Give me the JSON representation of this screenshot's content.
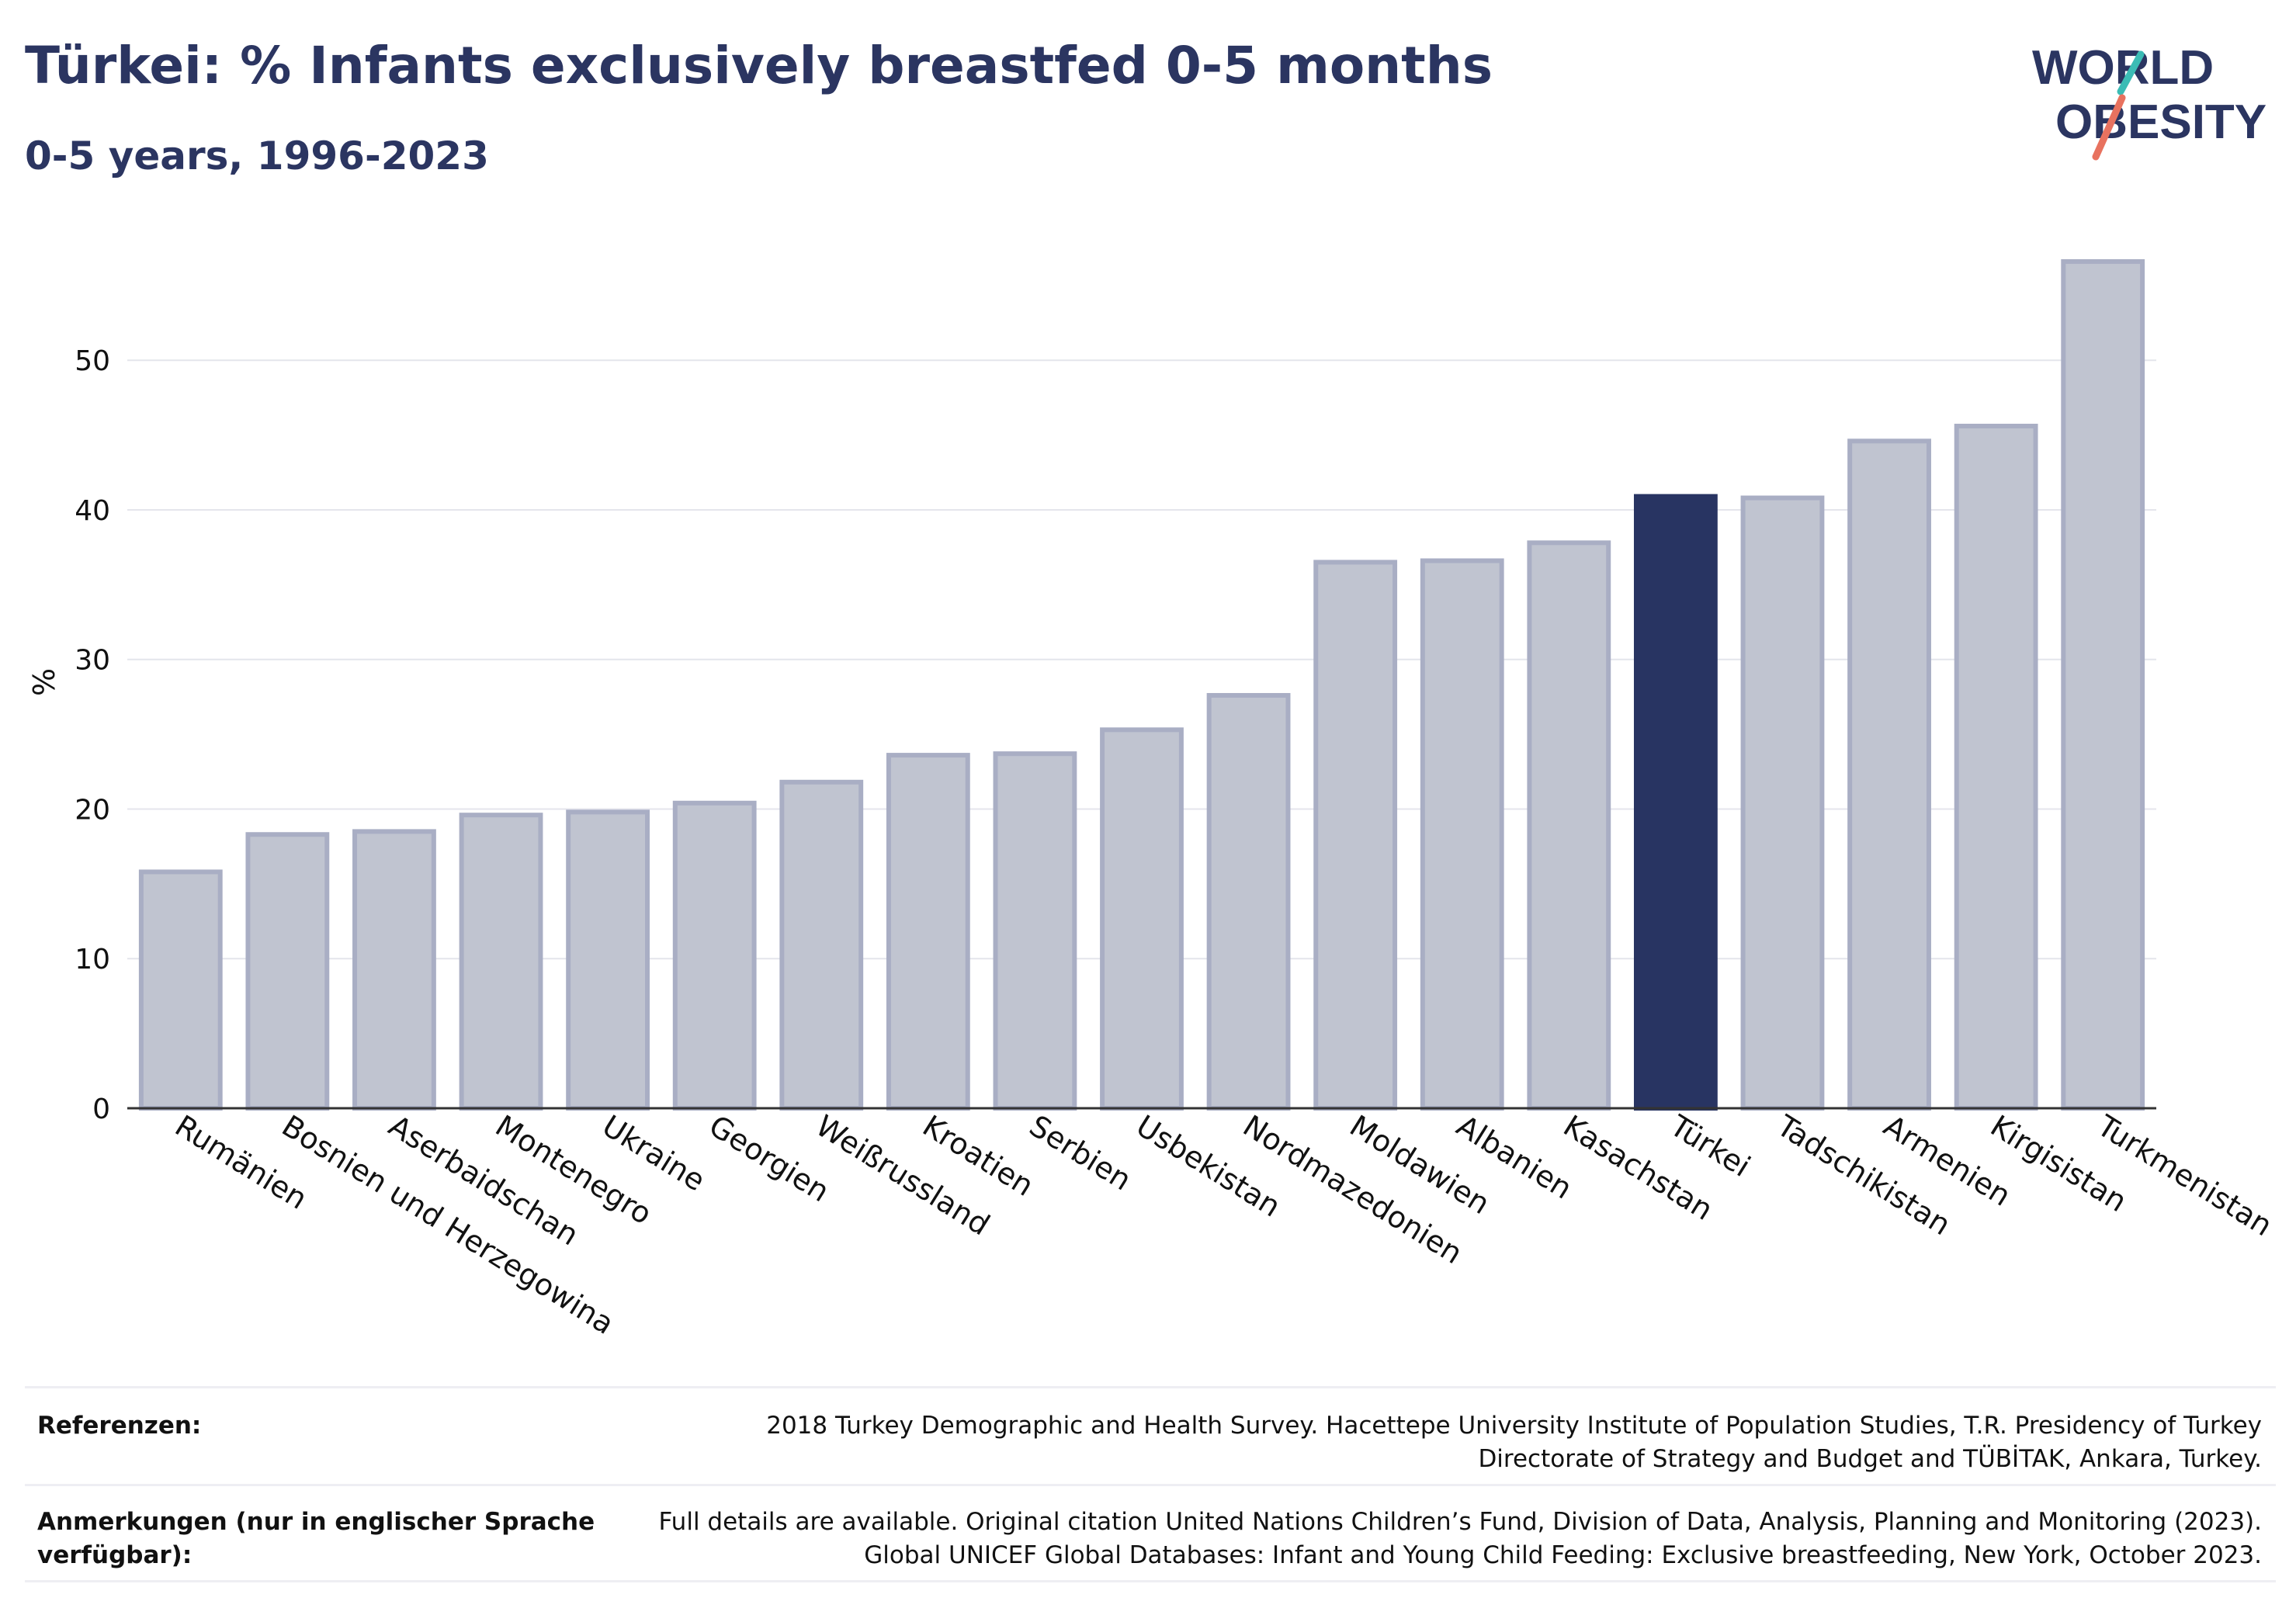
{
  "header": {
    "title": "Türkei: % Infants exclusively breastfed 0-5 months",
    "subtitle": "0-5 years, 1996-2023"
  },
  "logo": {
    "line1": "WORLD",
    "line2": "OBESITY"
  },
  "colors": {
    "text": "#2b3561",
    "highlight_bar": "#283462",
    "other_bar_fill": "#c0c4d0",
    "other_bar_stroke": "#a9aec4",
    "logo_teal": "#3bbcb5",
    "logo_coral": "#e8725f"
  },
  "chart_data": {
    "type": "bar",
    "ylabel": "%",
    "ylim": [
      0,
      58
    ],
    "yticks": [
      0,
      10,
      20,
      30,
      40,
      50
    ],
    "grid": true,
    "highlight": "Türkei",
    "categories": [
      "Rumänien",
      "Bosnien und Herzegowina",
      "Aserbaidschan",
      "Montenegro",
      "Ukraine",
      "Georgien",
      "Weißrussland",
      "Kroatien",
      "Serbien",
      "Usbekistan",
      "Nordmazedonien",
      "Moldawien",
      "Albanien",
      "Kasachstan",
      "Türkei",
      "Tadschikistan",
      "Armenien",
      "Kirgisistan",
      "Turkmenistan"
    ],
    "values": [
      15.8,
      18.3,
      18.5,
      19.6,
      19.8,
      20.4,
      21.8,
      23.6,
      23.7,
      25.3,
      27.6,
      36.5,
      36.6,
      37.8,
      40.9,
      40.8,
      44.6,
      45.6,
      56.6
    ]
  },
  "footer": {
    "references_label": "Referenzen:",
    "references_lines": [
      "2018 Turkey Demographic and Health Survey. Hacettepe University Institute of Population Studies, T.R. Presidency of Turkey",
      "Directorate of Strategy and Budget and TÜBİTAK, Ankara, Turkey."
    ],
    "notes_label_lines": [
      "Anmerkungen (nur in englischer Sprache",
      "verfügbar):"
    ],
    "notes_lines": [
      "Full details are available. Original citation United Nations Children’s Fund, Division of Data, Analysis, Planning and Monitoring (2023).",
      "Global UNICEF Global Databases: Infant and Young Child Feeding: Exclusive breastfeeding, New York, October 2023."
    ]
  }
}
